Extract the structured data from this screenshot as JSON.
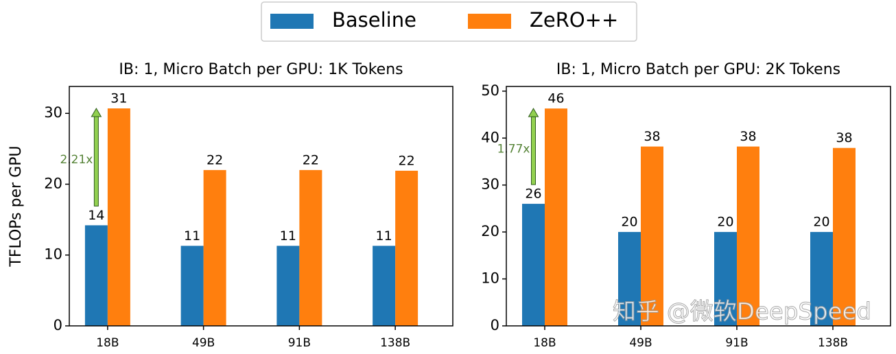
{
  "chart_data": [
    {
      "type": "bar",
      "title": "IB: 1, Micro Batch per GPU: 1K Tokens",
      "ylabel": "TFLOPs per GPU",
      "categories": [
        "18B",
        "49B",
        "91B",
        "138B"
      ],
      "series": [
        {
          "name": "Baseline",
          "color": "#1f77b4",
          "values": [
            14.2,
            11.3,
            11.3,
            11.3
          ],
          "value_labels": [
            "14",
            "11",
            "11",
            "11"
          ]
        },
        {
          "name": "ZeRO++",
          "color": "#ff7f0e",
          "values": [
            30.7,
            22.0,
            22.0,
            21.9
          ],
          "value_labels": [
            "31",
            "22",
            "22",
            "22"
          ]
        }
      ],
      "ylim": [
        0,
        33.8
      ],
      "yticks": [
        0,
        10,
        20,
        30
      ],
      "annotation": "2.21x",
      "annotation_color": "#548235",
      "arrow_color": "#92d050"
    },
    {
      "type": "bar",
      "title": "IB: 1, Micro Batch per GPU: 2K Tokens",
      "categories": [
        "18B",
        "49B",
        "91B",
        "138B"
      ],
      "series": [
        {
          "name": "Baseline",
          "color": "#1f77b4",
          "values": [
            26.0,
            20.0,
            20.0,
            20.0
          ],
          "value_labels": [
            "26",
            "20",
            "20",
            "20"
          ]
        },
        {
          "name": "ZeRO++",
          "color": "#ff7f0e",
          "values": [
            46.3,
            38.2,
            38.2,
            37.9
          ],
          "value_labels": [
            "46",
            "38",
            "38",
            "38"
          ]
        }
      ],
      "ylim": [
        0,
        51
      ],
      "yticks": [
        0,
        10,
        20,
        30,
        40,
        50
      ],
      "annotation": "1.77x",
      "annotation_color": "#548235",
      "arrow_color": "#92d050",
      "watermark": "知乎 @微软DeepSpeed"
    }
  ]
}
